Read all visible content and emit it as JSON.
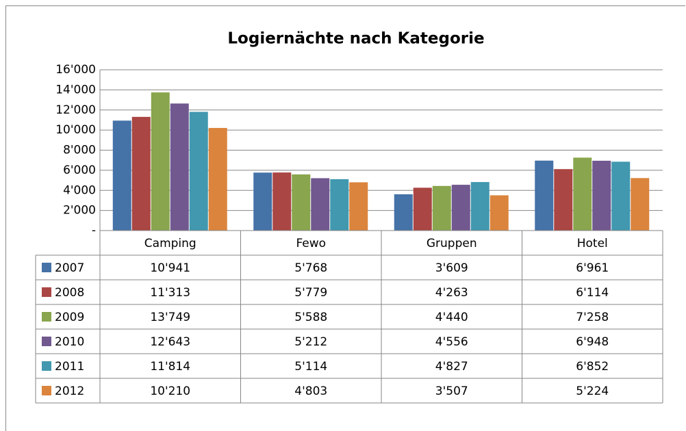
{
  "chart_data": {
    "type": "bar",
    "title": "Logiernächte nach Kategorie",
    "categories": [
      "Camping",
      "Fewo",
      "Gruppen",
      "Hotel"
    ],
    "series": [
      {
        "name": "2007",
        "color": "#4572a7",
        "values": [
          10941,
          5768,
          3609,
          6961
        ],
        "value_labels": [
          "10'941",
          "5'768",
          "3'609",
          "6'961"
        ]
      },
      {
        "name": "2008",
        "color": "#aa4643",
        "values": [
          11313,
          5779,
          4263,
          6114
        ],
        "value_labels": [
          "11'313",
          "5'779",
          "4'263",
          "6'114"
        ]
      },
      {
        "name": "2009",
        "color": "#89a54e",
        "values": [
          13749,
          5588,
          4440,
          7258
        ],
        "value_labels": [
          "13'749",
          "5'588",
          "4'440",
          "7'258"
        ]
      },
      {
        "name": "2010",
        "color": "#71588f",
        "values": [
          12643,
          5212,
          4556,
          6948
        ],
        "value_labels": [
          "12'643",
          "5'212",
          "4'556",
          "6'948"
        ]
      },
      {
        "name": "2011",
        "color": "#4198af",
        "values": [
          11814,
          5114,
          4827,
          6852
        ],
        "value_labels": [
          "11'814",
          "5'114",
          "4'827",
          "6'852"
        ]
      },
      {
        "name": "2012",
        "color": "#db843d",
        "values": [
          10210,
          4803,
          3507,
          5224
        ],
        "value_labels": [
          "10'210",
          "4'803",
          "3'507",
          "5'224"
        ]
      }
    ],
    "ylim": [
      0,
      16000
    ],
    "yticks": [
      {
        "value": 0,
        "label": "-"
      },
      {
        "value": 2000,
        "label": "2'000"
      },
      {
        "value": 4000,
        "label": "4'000"
      },
      {
        "value": 6000,
        "label": "6'000"
      },
      {
        "value": 8000,
        "label": "8'000"
      },
      {
        "value": 10000,
        "label": "10'000"
      },
      {
        "value": 12000,
        "label": "12'000"
      },
      {
        "value": 14000,
        "label": "14'000"
      },
      {
        "value": 16000,
        "label": "16'000"
      }
    ],
    "grid": true
  }
}
